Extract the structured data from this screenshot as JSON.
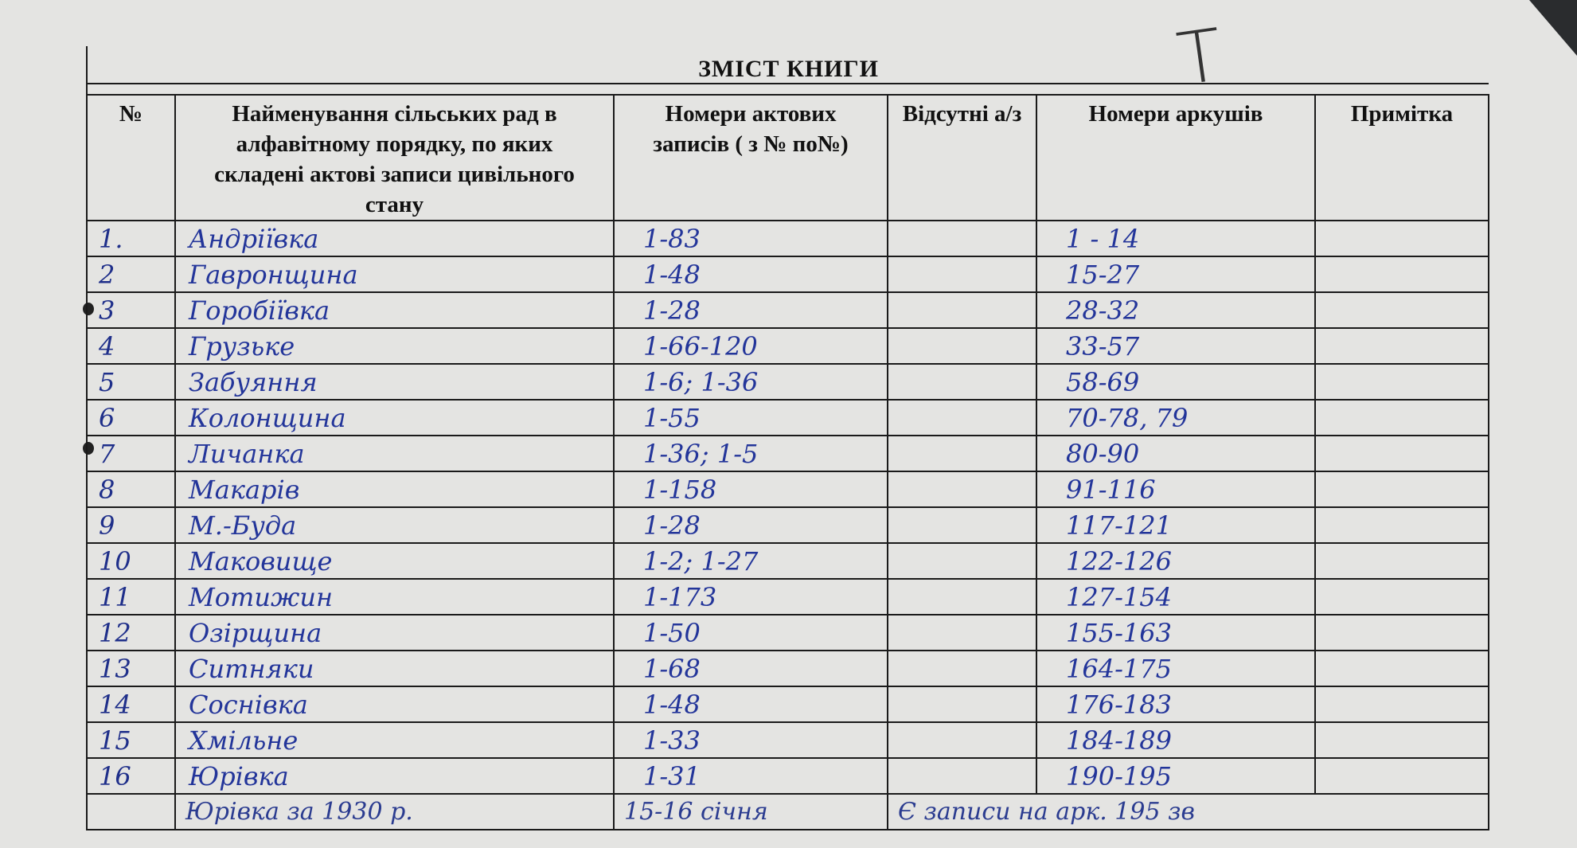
{
  "document": {
    "title": "ЗМІСТ КНИГИ",
    "corner_mark": "Т",
    "columns": [
      "№",
      "Найменування сільських рад в алфавітному порядку, по яких складені актові записи цивільного стану",
      "Номери актових записів ( з № по№)",
      "Відсутні а/з",
      "Номери аркушів",
      "Примітка"
    ],
    "rows": [
      {
        "no": "1.",
        "name": "Андріївка",
        "acts": "1-83",
        "missing": "",
        "sheets": "1 - 14",
        "note": ""
      },
      {
        "no": "2",
        "name": "Гавронщина",
        "acts": "1-48",
        "missing": "",
        "sheets": "15-27",
        "note": ""
      },
      {
        "no": "3",
        "name": "Горобіївка",
        "acts": "1-28",
        "missing": "",
        "sheets": "28-32",
        "note": ""
      },
      {
        "no": "4",
        "name": "Грузьке",
        "acts": "1-66-120",
        "missing": "",
        "sheets": "33-57",
        "note": ""
      },
      {
        "no": "5",
        "name": "Забуяння",
        "acts": "1-6; 1-36",
        "missing": "",
        "sheets": "58-69",
        "note": ""
      },
      {
        "no": "6",
        "name": "Колонщина",
        "acts": "1-55",
        "missing": "",
        "sheets": "70-78, 79",
        "note": ""
      },
      {
        "no": "7",
        "name": "Личанка",
        "acts": "1-36; 1-5",
        "missing": "",
        "sheets": "80-90",
        "note": ""
      },
      {
        "no": "8",
        "name": "Макарів",
        "acts": "1-158",
        "missing": "",
        "sheets": "91-116",
        "note": ""
      },
      {
        "no": "9",
        "name": "М.-Буда",
        "acts": "1-28",
        "missing": "",
        "sheets": "117-121",
        "note": ""
      },
      {
        "no": "10",
        "name": "Маковище",
        "acts": "1-2; 1-27",
        "missing": "",
        "sheets": "122-126",
        "note": ""
      },
      {
        "no": "11",
        "name": "Мотижин",
        "acts": "1-173",
        "missing": "",
        "sheets": "127-154",
        "note": ""
      },
      {
        "no": "12",
        "name": "Озірщина",
        "acts": "1-50",
        "missing": "",
        "sheets": "155-163",
        "note": ""
      },
      {
        "no": "13",
        "name": "Ситняки",
        "acts": "1-68",
        "missing": "",
        "sheets": "164-175",
        "note": ""
      },
      {
        "no": "14",
        "name": "Соснівка",
        "acts": "1-48",
        "missing": "",
        "sheets": "176-183",
        "note": ""
      },
      {
        "no": "15",
        "name": "Хмільне",
        "acts": "1-33",
        "missing": "",
        "sheets": "184-189",
        "note": ""
      },
      {
        "no": "16",
        "name": "Юрівка",
        "acts": "1-31",
        "missing": "",
        "sheets": "190-195",
        "note": ""
      }
    ],
    "extra_row": {
      "name": "Юрівка за 1930 р.",
      "acts": "15-16 січня",
      "remark": "Є записи на арк. 195 зв"
    },
    "colors": {
      "ink": "#23359a",
      "print": "#111111",
      "paper": "#e4e4e2"
    }
  }
}
